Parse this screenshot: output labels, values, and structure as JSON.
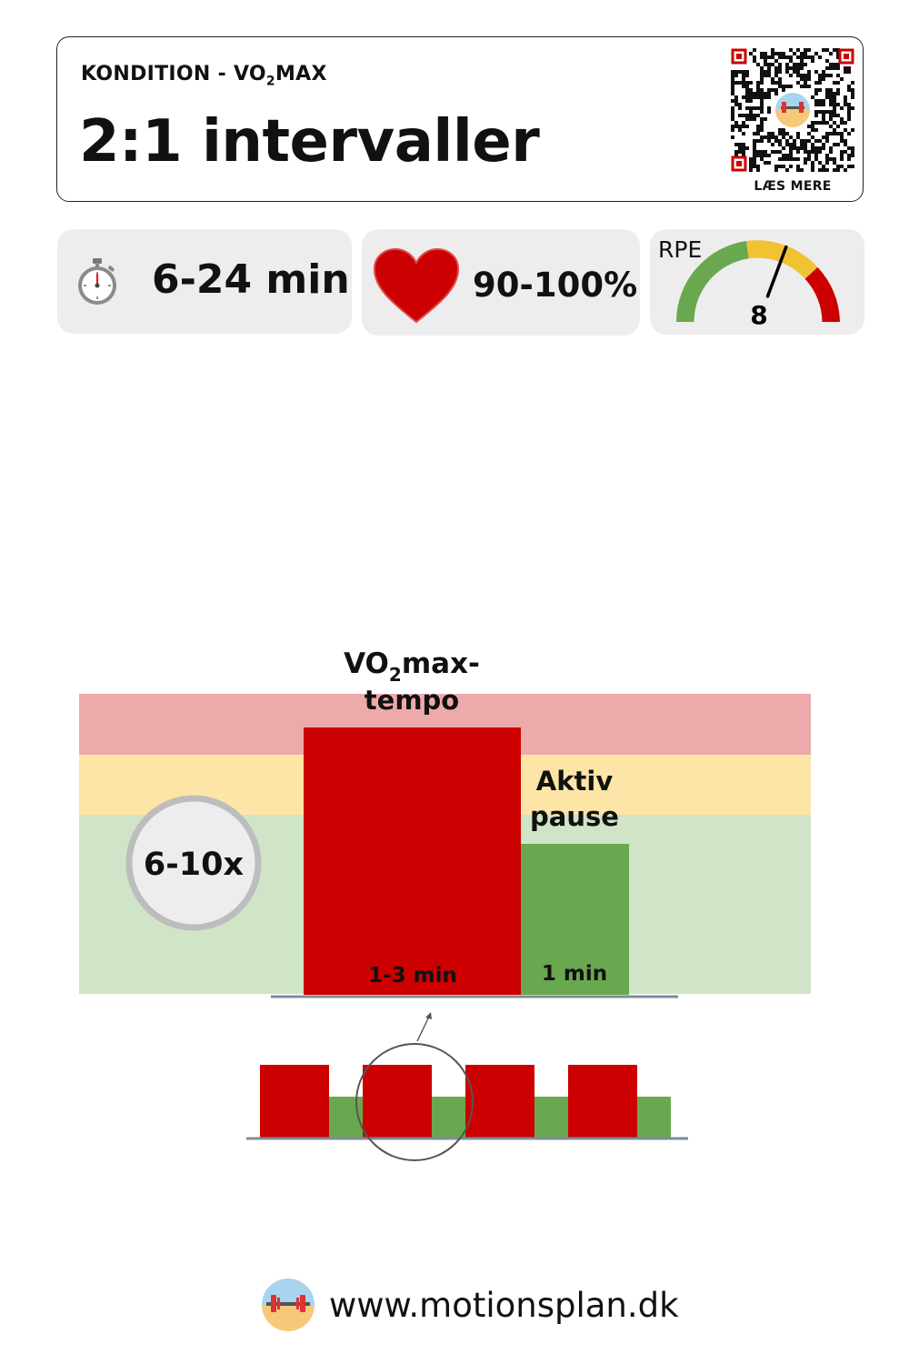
{
  "header": {
    "category_prefix": "KONDITION - VO",
    "category_sub": "2",
    "category_suffix": "MAX",
    "title": "2:1 intervaller",
    "read_more": "LÆS MERE"
  },
  "stats": {
    "duration": "6-24 min",
    "heart_rate": "90-100%",
    "rpe_label": "RPE",
    "rpe_value": "8"
  },
  "diagram": {
    "repeat_label": "6-10x",
    "work_label_prefix": "VO",
    "work_label_sub": "2",
    "work_label_suffix": "max-",
    "work_label_line2": "tempo",
    "work_duration": "1-3 min",
    "rest_label_line1": "Aktiv",
    "rest_label_line2": "pause",
    "rest_duration": "1 min",
    "colors": {
      "work": "#cc0000",
      "rest": "#6aa84f",
      "zone_high": "#eeaaaa",
      "zone_mid": "#fce5a6",
      "zone_low": "#d0e4c8"
    }
  },
  "rpe_gauge": {
    "colors": [
      "#6aa84f",
      "#f1c232",
      "#cc0000"
    ],
    "level": 8,
    "max": 10
  },
  "footer": {
    "url": "www.motionsplan.dk"
  }
}
